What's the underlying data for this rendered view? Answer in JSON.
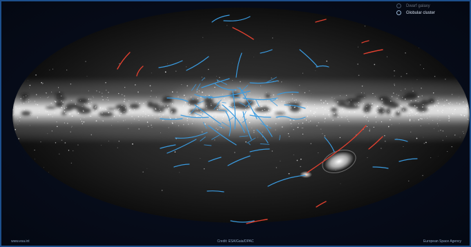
{
  "legend": {
    "items": [
      {
        "label": "Dwarf galaxy",
        "icon": "dwarf-galaxy-ring-icon",
        "faded": true
      },
      {
        "label": "Globular cluster",
        "icon": "globular-cluster-ring-icon",
        "faded": false
      }
    ]
  },
  "footer": {
    "left": "www.esa.int",
    "center": "Credit: ESA/Gaia/DPAC",
    "right": "European Space Agency"
  },
  "colors": {
    "background": "#060b18",
    "frame_border": "#1d4f8c",
    "globular_cluster_tracks": "#3a9be0",
    "dwarf_galaxy_tracks": "#e0402f",
    "sky_glow": "#d6d6d6"
  },
  "icons": {
    "sky_map": "gaia-all-sky-milky-way-map",
    "lmc": "large-magellanic-cloud",
    "smc": "small-magellanic-cloud"
  }
}
